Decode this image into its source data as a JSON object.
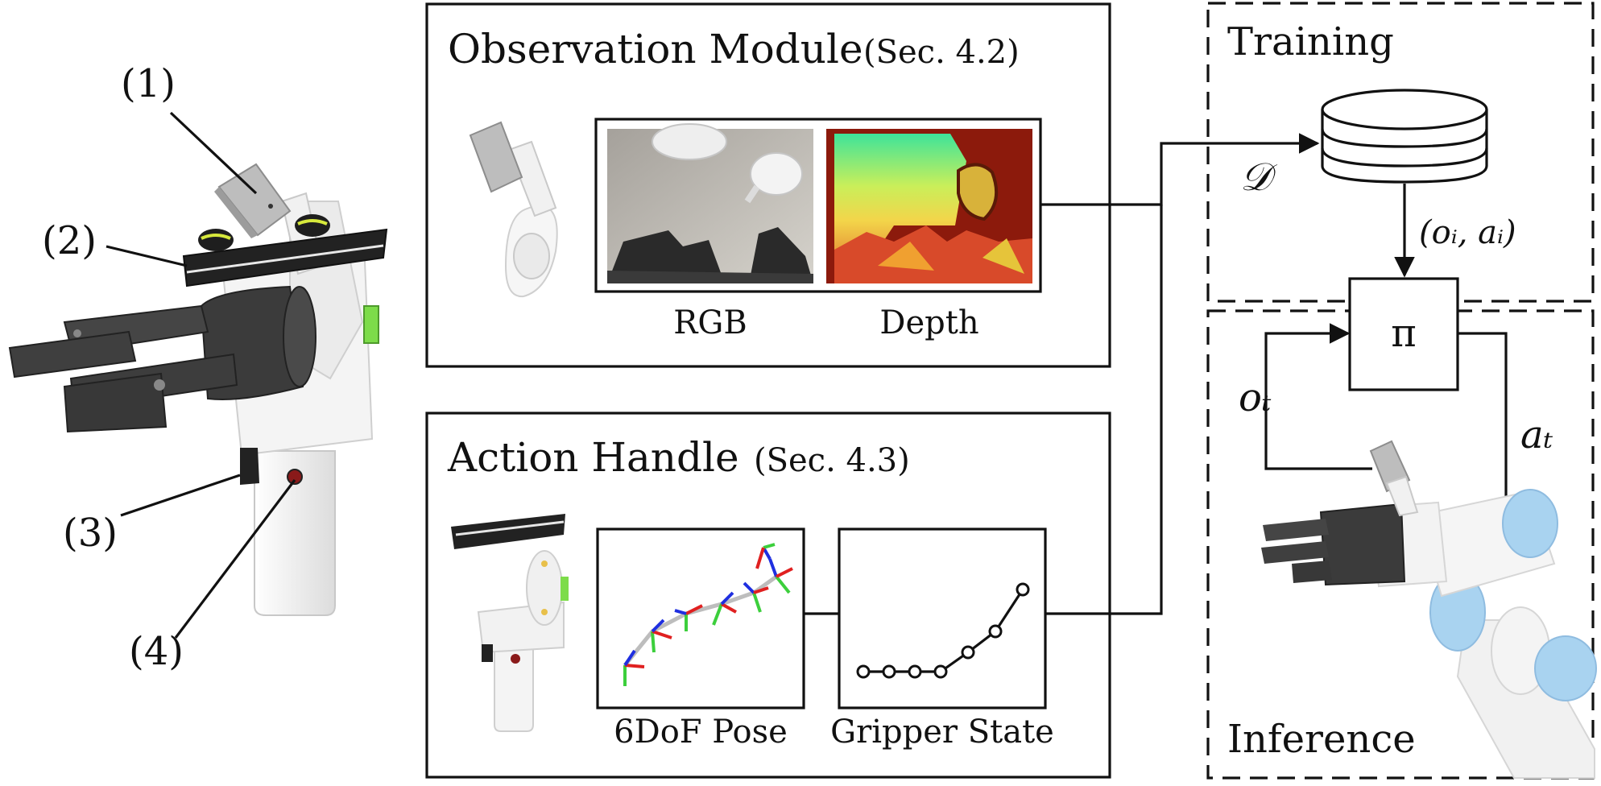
{
  "callouts": [
    "(1)",
    "(2)",
    "(3)",
    "(4)"
  ],
  "observation": {
    "title": "Observation Module",
    "ref": "(Sec. 4.2)",
    "rgb_label": "RGB",
    "depth_label": "Depth"
  },
  "action": {
    "title": "Action Handle",
    "ref": "(Sec. 4.3)",
    "pose_label": "6DoF Pose",
    "gripper_label": "Gripper State"
  },
  "training": {
    "title": "Training",
    "dataset_symbol": "𝒟",
    "sample_label": "(oᵢ, aᵢ)"
  },
  "inference": {
    "title": "Inference",
    "policy_symbol": "π",
    "obs_label": "oₜ",
    "act_label": "aₜ"
  },
  "colors": {
    "gripper_dark": "#3c3c3c",
    "handle_white": "#f2f2f2",
    "accent_green": "#7ddc4a",
    "axis_red": "#e02020",
    "axis_green": "#3ccf3c",
    "axis_blue": "#1f2fe0",
    "robot_arm_blue": "#a9d3f0"
  }
}
